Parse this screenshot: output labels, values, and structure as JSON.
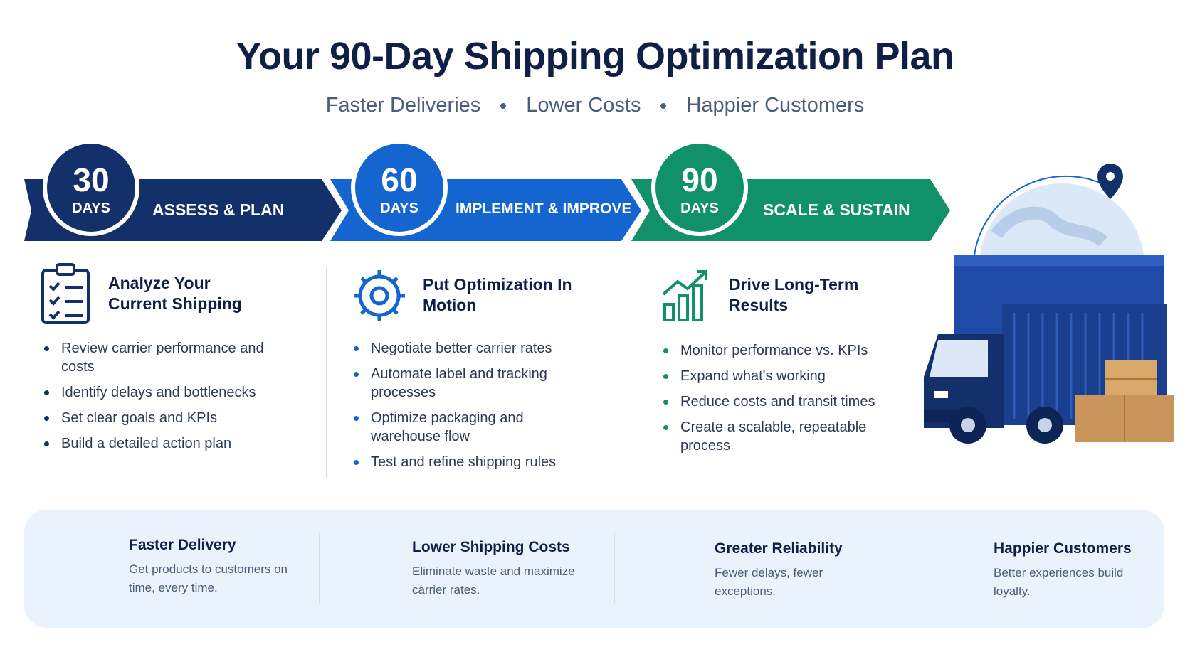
{
  "header": {
    "title": "Your 90-Day Shipping Optimization Plan",
    "subtitle": [
      "Faster Deliveries",
      "Lower Costs",
      "Happier Customers"
    ]
  },
  "phases": [
    {
      "number": "30",
      "unit": "DAYS",
      "label": "ASSESS & PLAN",
      "heading": "Analyze Your Current Shipping",
      "bullets": [
        "Review carrier performance and costs",
        "Identify delays and bottlenecks",
        "Set clear goals and KPIs",
        "Build a detailed action plan"
      ]
    },
    {
      "number": "60",
      "unit": "DAYS",
      "label": "IMPLEMENT & IMPROVE",
      "heading": "Put Optimization In Motion",
      "bullets": [
        "Negotiate better carrier rates",
        "Automate label and tracking processes",
        "Optimize packaging and warehouse flow",
        "Test and refine shipping rules"
      ]
    },
    {
      "number": "90",
      "unit": "DAYS",
      "label": "SCALE & SUSTAIN",
      "heading": "Drive Long-Term Results",
      "bullets": [
        "Monitor performance vs. KPIs",
        "Expand what's working",
        "Reduce costs and transit times",
        "Create a scalable, repeatable process"
      ]
    }
  ],
  "benefits": [
    {
      "title": "Faster Delivery",
      "text": "Get products to customers on time, every time."
    },
    {
      "title": "Lower Shipping Costs",
      "text": "Eliminate waste and maximize carrier rates."
    },
    {
      "title": "Greater Reliability",
      "text": "Fewer delays, fewer exceptions."
    },
    {
      "title": "Happier Customers",
      "text": "Better experiences build loyalty."
    }
  ]
}
